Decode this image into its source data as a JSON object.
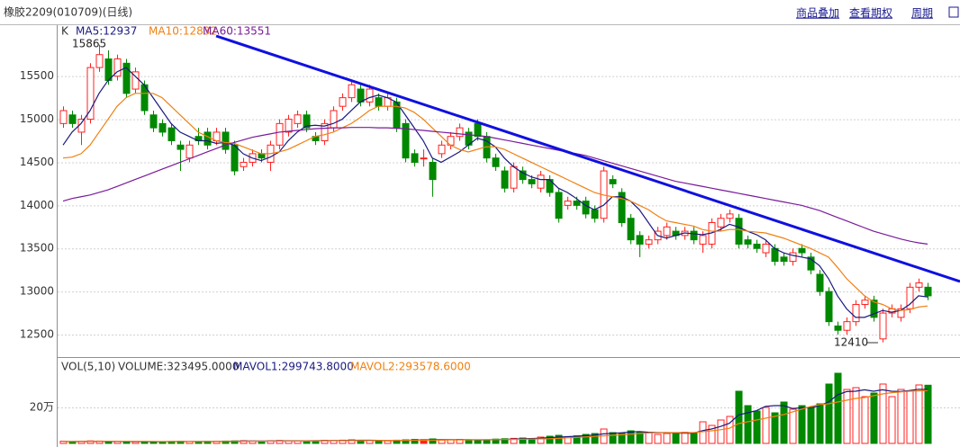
{
  "header": {
    "title": "橡胶2209(010709)(日线)",
    "links": [
      "商品叠加",
      "查看期权",
      "周期"
    ]
  },
  "chart_data": [
    {
      "type": "candlestick",
      "legend_prefix": "K",
      "up_color": "#ff2020",
      "down_color": "#008800",
      "ylim": [
        12260,
        16050
      ],
      "yticks": [
        12500,
        13000,
        13500,
        14000,
        14500,
        15000,
        15500
      ],
      "grid": true,
      "open": [
        14950,
        15050,
        14850,
        15000,
        15600,
        15700,
        15500,
        15650,
        15350,
        15400,
        15050,
        14950,
        14900,
        14700,
        14550,
        14800,
        14850,
        14750,
        14850,
        14700,
        14450,
        14500,
        14600,
        14500,
        14700,
        14850,
        14950,
        15050,
        14800,
        14750,
        14900,
        15150,
        15250,
        15350,
        15200,
        15250,
        15150,
        15200,
        14950,
        14600,
        14550,
        14500,
        14600,
        14700,
        14800,
        14850,
        14950,
        14800,
        14550,
        14400,
        14200,
        14400,
        14300,
        14200,
        14300,
        14150,
        14000,
        14050,
        14050,
        13950,
        13850,
        14300,
        14150,
        13850,
        13650,
        13550,
        13600,
        13650,
        13700,
        13650,
        13700,
        13550,
        13550,
        13750,
        13850,
        13850,
        13600,
        13550,
        13450,
        13500,
        13400,
        13350,
        13500,
        13400,
        13200,
        13000,
        12600,
        12550,
        12650,
        12850,
        12900,
        12450,
        12750,
        12700,
        12800,
        13050,
        13050
      ],
      "high": [
        15150,
        15100,
        15050,
        15650,
        15865,
        15800,
        15750,
        15700,
        15600,
        15450,
        15100,
        15000,
        14950,
        14750,
        14750,
        14900,
        14900,
        14900,
        14900,
        14750,
        14550,
        14650,
        14650,
        14750,
        15000,
        15050,
        15100,
        15100,
        14850,
        15000,
        15150,
        15300,
        15450,
        15400,
        15400,
        15300,
        15300,
        15250,
        15000,
        14650,
        14650,
        14550,
        14750,
        14850,
        14950,
        14900,
        15000,
        14850,
        14600,
        14450,
        14500,
        14450,
        14350,
        14400,
        14350,
        14200,
        14100,
        14100,
        14100,
        14000,
        14450,
        14350,
        14200,
        13900,
        13700,
        13650,
        13750,
        13800,
        13750,
        13750,
        13750,
        13700,
        13850,
        13900,
        13950,
        13900,
        13650,
        13600,
        13600,
        13550,
        13450,
        13500,
        13550,
        13450,
        13250,
        13050,
        12650,
        12700,
        12900,
        12950,
        12950,
        12800,
        12850,
        12850,
        13100,
        13150,
        13100
      ],
      "low": [
        14900,
        14900,
        14700,
        14950,
        15550,
        15400,
        15450,
        15250,
        15300,
        15050,
        14850,
        14800,
        14700,
        14400,
        14500,
        14700,
        14650,
        14700,
        14600,
        14350,
        14400,
        14450,
        14500,
        14400,
        14650,
        14800,
        14900,
        14850,
        14700,
        14700,
        14850,
        15100,
        15200,
        15150,
        15150,
        15100,
        15100,
        14850,
        14500,
        14450,
        14450,
        14100,
        14550,
        14650,
        14750,
        14650,
        14750,
        14500,
        14400,
        14150,
        14150,
        14250,
        14200,
        14150,
        14100,
        13800,
        13950,
        13950,
        13850,
        13800,
        13800,
        14200,
        13750,
        13550,
        13400,
        13500,
        13550,
        13600,
        13600,
        13600,
        13550,
        13450,
        13500,
        13700,
        13800,
        13500,
        13500,
        13450,
        13400,
        13300,
        13300,
        13300,
        13400,
        13200,
        12950,
        12600,
        12500,
        12500,
        12600,
        12800,
        12650,
        12410,
        12700,
        12650,
        12750,
        13000,
        12900
      ],
      "close": [
        15100,
        14950,
        15000,
        15600,
        15750,
        15450,
        15700,
        15300,
        15550,
        15100,
        14900,
        14850,
        14750,
        14650,
        14700,
        14750,
        14700,
        14850,
        14650,
        14400,
        14500,
        14600,
        14550,
        14700,
        14950,
        15000,
        15050,
        14900,
        14750,
        14950,
        15100,
        15250,
        15400,
        15200,
        15350,
        15150,
        15250,
        14900,
        14550,
        14500,
        14550,
        14300,
        14700,
        14800,
        14900,
        14700,
        14800,
        14550,
        14450,
        14200,
        14450,
        14300,
        14250,
        14350,
        14150,
        13850,
        14050,
        14000,
        13900,
        13850,
        14400,
        14250,
        13800,
        13600,
        13550,
        13600,
        13700,
        13750,
        13650,
        13700,
        13600,
        13650,
        13800,
        13850,
        13900,
        13550,
        13550,
        13500,
        13550,
        13350,
        13350,
        13450,
        13450,
        13250,
        13000,
        12650,
        12550,
        12650,
        12850,
        12900,
        12700,
        12750,
        12800,
        12800,
        13050,
        13100,
        12950
      ],
      "series": [
        {
          "name": "MA5",
          "legend_label": "MA5:12937",
          "color": "#1a1a80",
          "values": [
            14700,
            14850,
            14950,
            15100,
            15300,
            15450,
            15550,
            15600,
            15500,
            15400,
            15250,
            15100,
            14950,
            14850,
            14800,
            14750,
            14750,
            14720,
            14730,
            14700,
            14600,
            14550,
            14520,
            14560,
            14620,
            14750,
            14850,
            14920,
            14930,
            14920,
            14950,
            15000,
            15100,
            15200,
            15250,
            15280,
            15250,
            15200,
            15050,
            14900,
            14750,
            14550,
            14500,
            14560,
            14620,
            14700,
            14780,
            14750,
            14680,
            14550,
            14450,
            14380,
            14330,
            14300,
            14300,
            14200,
            14150,
            14080,
            14000,
            13950,
            14000,
            14100,
            14100,
            14050,
            13950,
            13800,
            13650,
            13620,
            13650,
            13680,
            13670,
            13660,
            13680,
            13720,
            13780,
            13750,
            13700,
            13660,
            13600,
            13500,
            13450,
            13420,
            13400,
            13380,
            13300,
            13150,
            12950,
            12800,
            12700,
            12700,
            12740,
            12780,
            12760,
            12780,
            12850,
            12950,
            12937
          ]
        },
        {
          "name": "MA10",
          "legend_label": "MA10:12832",
          "color": "#f08010",
          "values": [
            14550,
            14560,
            14600,
            14700,
            14850,
            15000,
            15150,
            15250,
            15300,
            15300,
            15300,
            15250,
            15150,
            15050,
            14950,
            14850,
            14800,
            14750,
            14730,
            14720,
            14680,
            14640,
            14600,
            14600,
            14620,
            14650,
            14700,
            14750,
            14800,
            14820,
            14850,
            14900,
            14950,
            15020,
            15100,
            15150,
            15150,
            15150,
            15130,
            15080,
            15000,
            14900,
            14800,
            14700,
            14650,
            14620,
            14650,
            14680,
            14680,
            14650,
            14600,
            14550,
            14500,
            14450,
            14400,
            14350,
            14300,
            14250,
            14200,
            14150,
            14120,
            14100,
            14080,
            14050,
            14000,
            13950,
            13880,
            13820,
            13800,
            13780,
            13760,
            13720,
            13700,
            13700,
            13720,
            13720,
            13700,
            13690,
            13680,
            13650,
            13620,
            13580,
            13540,
            13500,
            13450,
            13400,
            13280,
            13150,
            13050,
            12950,
            12880,
            12850,
            12800,
            12780,
            12790,
            12820,
            12832
          ]
        },
        {
          "name": "MA60",
          "legend_label": "MA60:13551",
          "color": "#7a1a9a",
          "values": [
            14050,
            14080,
            14100,
            14120,
            14150,
            14180,
            14220,
            14260,
            14300,
            14340,
            14380,
            14420,
            14460,
            14500,
            14540,
            14580,
            14620,
            14660,
            14700,
            14730,
            14760,
            14790,
            14810,
            14830,
            14850,
            14860,
            14870,
            14880,
            14890,
            14895,
            14900,
            14900,
            14905,
            14905,
            14905,
            14900,
            14900,
            14895,
            14890,
            14880,
            14870,
            14860,
            14850,
            14840,
            14830,
            14820,
            14810,
            14800,
            14780,
            14760,
            14740,
            14720,
            14700,
            14680,
            14660,
            14640,
            14620,
            14600,
            14580,
            14550,
            14520,
            14490,
            14460,
            14430,
            14400,
            14370,
            14340,
            14310,
            14280,
            14260,
            14240,
            14220,
            14200,
            14180,
            14160,
            14140,
            14120,
            14100,
            14080,
            14060,
            14040,
            14020,
            14000,
            13970,
            13940,
            13900,
            13860,
            13820,
            13780,
            13740,
            13700,
            13670,
            13640,
            13610,
            13585,
            13565,
            13551
          ]
        }
      ]
    },
    {
      "type": "bar",
      "legend_prefix": "VOL(5,10)",
      "volume_label": "VOLUME:323495.0000",
      "ylim": [
        0,
        465000
      ],
      "yticks": [
        {
          "value": 200000,
          "label": "20万"
        }
      ],
      "values": [
        12000,
        10000,
        11000,
        14000,
        13000,
        12000,
        11000,
        10000,
        9000,
        10000,
        9000,
        10000,
        11000,
        12000,
        10000,
        9000,
        11000,
        12000,
        13000,
        14000,
        15000,
        13000,
        12000,
        14000,
        16000,
        15000,
        14000,
        13000,
        15000,
        17000,
        16000,
        18000,
        20000,
        17000,
        16000,
        15000,
        14000,
        18000,
        20000,
        22000,
        21000,
        25000,
        18000,
        20000,
        22000,
        19000,
        18000,
        20000,
        24000,
        26000,
        28000,
        30000,
        27000,
        35000,
        40000,
        45000,
        38000,
        42000,
        50000,
        55000,
        80000,
        60000,
        55000,
        70000,
        65000,
        60000,
        50000,
        55000,
        60000,
        62000,
        58000,
        120000,
        100000,
        130000,
        150000,
        290000,
        210000,
        180000,
        200000,
        170000,
        230000,
        190000,
        210000,
        200000,
        220000,
        330000,
        390000,
        300000,
        310000,
        260000,
        280000,
        330000,
        260000,
        300000,
        290000,
        325000,
        323495
      ],
      "series": [
        {
          "name": "MAVOL1",
          "legend_label": "MAVOL1:299743.8000",
          "color": "#1a1a80",
          "values": [
            11000,
            11000,
            11500,
            12000,
            12000,
            12000,
            12000,
            12000,
            11000,
            10500,
            10000,
            9800,
            10200,
            10500,
            10500,
            10500,
            10500,
            11000,
            11500,
            12000,
            13000,
            13500,
            13500,
            13500,
            14000,
            14500,
            14500,
            14500,
            15000,
            15500,
            15500,
            16000,
            17000,
            17500,
            17500,
            17000,
            16000,
            16000,
            16500,
            18000,
            19000,
            21000,
            21000,
            21000,
            21000,
            21000,
            19500,
            20000,
            21000,
            22000,
            24000,
            26000,
            27000,
            29000,
            32000,
            35000,
            37000,
            40000,
            43000,
            46000,
            53000,
            56000,
            59000,
            63000,
            66000,
            62000,
            60000,
            60000,
            58000,
            57000,
            57000,
            71000,
            80000,
            94000,
            112000,
            158000,
            170000,
            182000,
            206000,
            210000,
            210000,
            194000,
            198000,
            198000,
            210000,
            230000,
            270000,
            288000,
            290000,
            298000,
            290000,
            298000,
            290000,
            288000,
            294000,
            301000,
            299743.8
          ]
        },
        {
          "name": "MAVOL2",
          "legend_label": "MAVOL2:293578.6000",
          "color": "#f08010",
          "values": [
            10500,
            10700,
            11000,
            11200,
            11400,
            11500,
            11600,
            11700,
            11500,
            11300,
            11000,
            10800,
            10700,
            10600,
            10500,
            10400,
            10300,
            10500,
            10700,
            11000,
            11500,
            11800,
            12000,
            12300,
            12700,
            13000,
            13300,
            13600,
            14000,
            14500,
            14700,
            15000,
            15500,
            15800,
            16000,
            16200,
            16400,
            16700,
            17000,
            17300,
            17500,
            18000,
            18500,
            19000,
            19500,
            20000,
            20500,
            20800,
            21000,
            21500,
            22000,
            23000,
            24000,
            25000,
            26000,
            28000,
            31000,
            33000,
            36000,
            39000,
            42000,
            45000,
            48000,
            51000,
            55000,
            58000,
            59000,
            60000,
            60000,
            60000,
            60000,
            65000,
            70000,
            76000,
            84000,
            110000,
            120000,
            130000,
            140000,
            150000,
            160000,
            175000,
            190000,
            205000,
            215000,
            220000,
            230000,
            240000,
            250000,
            255000,
            265000,
            275000,
            282000,
            286000,
            290000,
            292000,
            293578.6
          ]
        }
      ]
    }
  ]
}
